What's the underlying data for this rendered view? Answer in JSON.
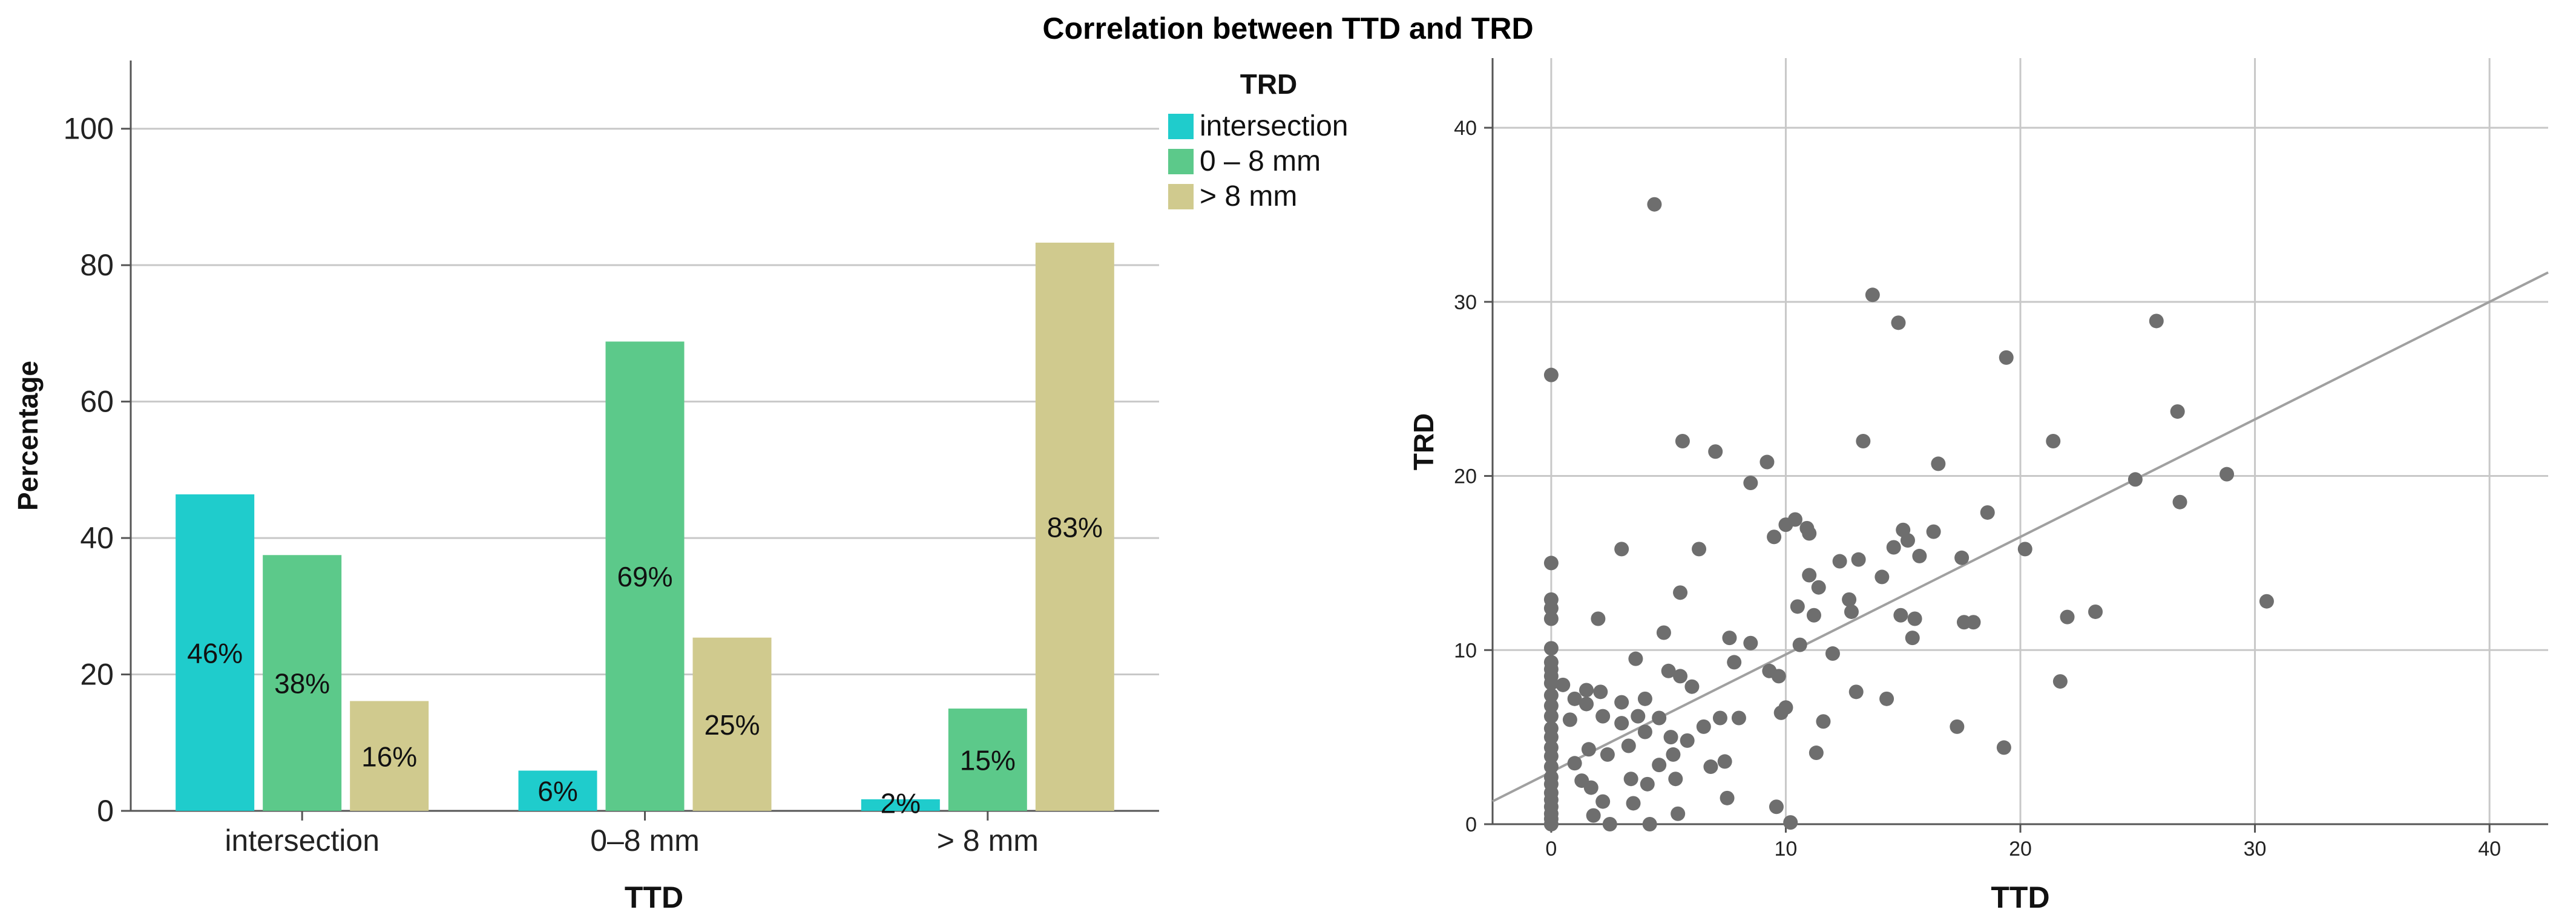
{
  "title": "Correlation between TTD and TRD",
  "chart_data": [
    {
      "type": "bar",
      "title": "Correlation between TTD and TRD",
      "xlabel": "TTD",
      "ylabel": "Percentage",
      "ylim": [
        0,
        110
      ],
      "yticks": [
        0,
        20,
        40,
        60,
        80,
        100
      ],
      "grid": true,
      "categories": [
        "intersection",
        "0–8 mm",
        "> 8 mm"
      ],
      "legend": {
        "title": "TRD",
        "placement": "top-right"
      },
      "series": [
        {
          "name": "intersection",
          "color": "#1fcccc",
          "values": [
            46.4,
            5.9,
            1.7
          ],
          "labels": [
            "46%",
            "6%",
            "2%"
          ]
        },
        {
          "name": "0 – 8 mm",
          "color": "#5cc98a",
          "values": [
            37.5,
            68.8,
            15.0
          ],
          "labels": [
            "38%",
            "69%",
            "15%"
          ]
        },
        {
          "name": "> 8 mm",
          "color": "#d0ca8e",
          "values": [
            16.1,
            25.4,
            83.3
          ],
          "labels": [
            "16%",
            "25%",
            "83%"
          ]
        }
      ]
    },
    {
      "type": "scatter",
      "xlabel": "TTD",
      "ylabel": "TRD",
      "xlim": [
        -2.5,
        42.5
      ],
      "ylim": [
        0,
        44
      ],
      "xticks": [
        0,
        10,
        20,
        30,
        40
      ],
      "yticks": [
        0,
        10,
        20,
        30,
        40
      ],
      "grid": true,
      "point_color": "#6e6e6e",
      "fit_line": {
        "intercept": 3.0,
        "slope": 0.675,
        "color": "#a0a0a0"
      },
      "points": [
        [
          0,
          25.8
        ],
        [
          0,
          15
        ],
        [
          0,
          12.9
        ],
        [
          0,
          12.4
        ],
        [
          0,
          11.8
        ],
        [
          0,
          10.1
        ],
        [
          0,
          9.3
        ],
        [
          0,
          8.9
        ],
        [
          0,
          8.5
        ],
        [
          0,
          8.1
        ],
        [
          0,
          7.4
        ],
        [
          0,
          6.8
        ],
        [
          0,
          6.2
        ],
        [
          0,
          5.5
        ],
        [
          0,
          5
        ],
        [
          0,
          4.4
        ],
        [
          0,
          3.9
        ],
        [
          0,
          3.3
        ],
        [
          0,
          2.7
        ],
        [
          0,
          2.3
        ],
        [
          0,
          1.8
        ],
        [
          0,
          1.4
        ],
        [
          0,
          1.0
        ],
        [
          0,
          0.6
        ],
        [
          0,
          0.3
        ],
        [
          0,
          0
        ],
        [
          0.5,
          8.0
        ],
        [
          0.8,
          6.0
        ],
        [
          1.0,
          7.2
        ],
        [
          1.0,
          3.5
        ],
        [
          1.3,
          2.5
        ],
        [
          1.5,
          7.7
        ],
        [
          1.5,
          6.9
        ],
        [
          1.6,
          4.3
        ],
        [
          1.7,
          2.1
        ],
        [
          1.8,
          0.5
        ],
        [
          2.0,
          11.8
        ],
        [
          2.1,
          7.6
        ],
        [
          2.2,
          6.2
        ],
        [
          2.2,
          1.3
        ],
        [
          2.4,
          4.0
        ],
        [
          2.5,
          0
        ],
        [
          3.0,
          15.8
        ],
        [
          3.0,
          7.0
        ],
        [
          3.0,
          5.8
        ],
        [
          3.3,
          4.5
        ],
        [
          3.4,
          2.6
        ],
        [
          3.5,
          1.2
        ],
        [
          3.6,
          9.5
        ],
        [
          3.7,
          6.2
        ],
        [
          4.0,
          7.2
        ],
        [
          4.0,
          5.3
        ],
        [
          4.1,
          2.3
        ],
        [
          4.2,
          0
        ],
        [
          4.4,
          35.6
        ],
        [
          4.6,
          6.1
        ],
        [
          4.6,
          3.4
        ],
        [
          4.8,
          11.0
        ],
        [
          5.0,
          8.8
        ],
        [
          5.1,
          5.0
        ],
        [
          5.2,
          4.0
        ],
        [
          5.3,
          2.6
        ],
        [
          5.4,
          0.6
        ],
        [
          5.5,
          13.3
        ],
        [
          5.5,
          8.5
        ],
        [
          5.6,
          22.0
        ],
        [
          5.8,
          4.8
        ],
        [
          6.0,
          7.9
        ],
        [
          6.3,
          15.8
        ],
        [
          6.5,
          5.6
        ],
        [
          6.8,
          3.3
        ],
        [
          7.0,
          21.4
        ],
        [
          7.2,
          6.1
        ],
        [
          7.4,
          3.6
        ],
        [
          7.5,
          1.5
        ],
        [
          7.6,
          10.7
        ],
        [
          7.8,
          9.3
        ],
        [
          8.0,
          6.1
        ],
        [
          8.5,
          19.6
        ],
        [
          8.5,
          10.4
        ],
        [
          9.2,
          20.8
        ],
        [
          9.3,
          8.8
        ],
        [
          9.5,
          16.5
        ],
        [
          9.6,
          1.0
        ],
        [
          9.7,
          8.5
        ],
        [
          9.8,
          6.4
        ],
        [
          10.0,
          17.2
        ],
        [
          10.0,
          6.7
        ],
        [
          10.2,
          0.1
        ],
        [
          10.4,
          17.5
        ],
        [
          10.5,
          12.5
        ],
        [
          10.6,
          10.3
        ],
        [
          10.9,
          17.0
        ],
        [
          11.0,
          16.7
        ],
        [
          11.0,
          14.3
        ],
        [
          11.2,
          12.0
        ],
        [
          11.3,
          4.1
        ],
        [
          11.4,
          13.6
        ],
        [
          11.6,
          5.9
        ],
        [
          12.0,
          9.8
        ],
        [
          12.3,
          15.1
        ],
        [
          12.7,
          12.9
        ],
        [
          12.8,
          12.2
        ],
        [
          13.0,
          7.6
        ],
        [
          13.1,
          15.2
        ],
        [
          13.3,
          22.0
        ],
        [
          13.7,
          30.4
        ],
        [
          14.1,
          14.2
        ],
        [
          14.3,
          7.2
        ],
        [
          14.6,
          15.9
        ],
        [
          14.8,
          28.8
        ],
        [
          14.9,
          12.0
        ],
        [
          15.0,
          16.9
        ],
        [
          15.2,
          16.3
        ],
        [
          15.4,
          10.7
        ],
        [
          15.5,
          11.8
        ],
        [
          15.7,
          15.4
        ],
        [
          16.3,
          16.8
        ],
        [
          16.5,
          20.7
        ],
        [
          17.3,
          5.6
        ],
        [
          17.5,
          15.3
        ],
        [
          17.6,
          11.6
        ],
        [
          18.0,
          11.6
        ],
        [
          18.6,
          17.9
        ],
        [
          19.3,
          4.4
        ],
        [
          19.4,
          26.8
        ],
        [
          20.2,
          15.8
        ],
        [
          21.4,
          22.0
        ],
        [
          21.7,
          8.2
        ],
        [
          22.0,
          11.9
        ],
        [
          23.2,
          12.2
        ],
        [
          24.9,
          19.8
        ],
        [
          25.8,
          28.9
        ],
        [
          26.7,
          23.7
        ],
        [
          26.8,
          18.5
        ],
        [
          28.8,
          20.1
        ],
        [
          30.5,
          12.8
        ]
      ]
    }
  ]
}
